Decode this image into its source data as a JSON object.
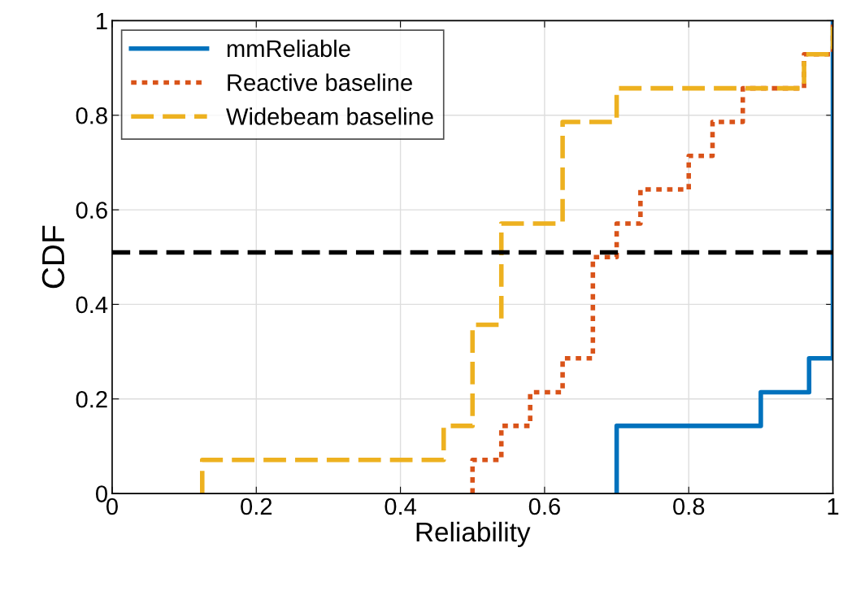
{
  "chart_data": {
    "type": "step",
    "xlabel": "Reliability",
    "ylabel": "CDF",
    "xlim": [
      0,
      1
    ],
    "ylim": [
      0,
      1
    ],
    "xticks": [
      0,
      0.2,
      0.4,
      0.6,
      0.8,
      1
    ],
    "yticks": [
      0,
      0.2,
      0.4,
      0.6,
      0.8,
      1
    ],
    "grid": true,
    "legend": "top left",
    "marker": "none",
    "series": [
      {
        "name": "mmReliable",
        "color": "#0072bd",
        "line_style": "solid",
        "x": [
          0.7,
          0.7,
          0.9,
          0.967,
          1,
          1
        ],
        "values": [
          0,
          0.143,
          0.214,
          0.286,
          0.286,
          1
        ]
      },
      {
        "name": "Reactive baseline",
        "color": "#d95319",
        "line_style": "dotted",
        "x": [
          0.5,
          0.5,
          0.54,
          0.58,
          0.625,
          0.667,
          0.7,
          0.733,
          0.8,
          0.833,
          0.875,
          0.96,
          1
        ],
        "values": [
          0,
          0.071,
          0.143,
          0.214,
          0.286,
          0.5,
          0.571,
          0.643,
          0.714,
          0.786,
          0.857,
          0.929,
          1
        ]
      },
      {
        "name": "Widebeam baseline",
        "color": "#edb120",
        "line_style": "dashed",
        "x": [
          0.125,
          0.125,
          0.46,
          0.5,
          0.54,
          0.625,
          0.7,
          0.96,
          1
        ],
        "values": [
          0,
          0.071,
          0.143,
          0.357,
          0.571,
          0.786,
          0.857,
          0.929,
          1
        ]
      }
    ],
    "ref_lines": [
      {
        "axis": "y",
        "value": 0.51,
        "color": "#000000",
        "line_style": "dashed"
      }
    ]
  }
}
